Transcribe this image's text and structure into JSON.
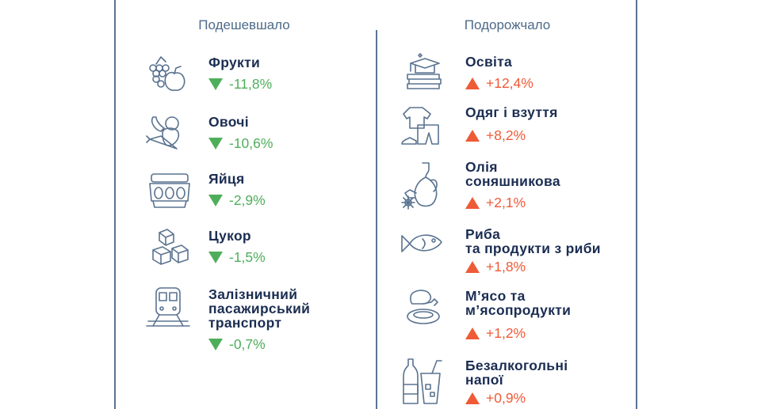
{
  "colors": {
    "navy": "#1b2d52",
    "green": "#4fae5a",
    "red": "#ef5a37",
    "header": "#4d6a89"
  },
  "cheaper": {
    "heading": "Подешевшало",
    "items": [
      {
        "lines": [
          "Фрукти"
        ],
        "value": "-11,8%",
        "icon": "fruit-icon"
      },
      {
        "lines": [
          "Овочі"
        ],
        "value": "-10,6%",
        "icon": "vegetables-icon"
      },
      {
        "lines": [
          "Яйця"
        ],
        "value": "-2,9%",
        "icon": "eggs-icon"
      },
      {
        "lines": [
          "Цукор"
        ],
        "value": "-1,5%",
        "icon": "sugar-icon"
      },
      {
        "lines": [
          "Залізничний",
          "пасажирський",
          "транспорт"
        ],
        "value": "-0,7%",
        "icon": "train-icon"
      }
    ]
  },
  "pricier": {
    "heading": "Подорожчало",
    "items": [
      {
        "lines": [
          "Освіта"
        ],
        "value": "+12,4%",
        "icon": "education-icon"
      },
      {
        "lines": [
          "Одяг і взуття"
        ],
        "value": "+8,2%",
        "icon": "clothes-icon"
      },
      {
        "lines": [
          "Олія",
          "соняшникова"
        ],
        "value": "+2,1%",
        "icon": "oil-icon"
      },
      {
        "lines": [
          "Риба",
          "та продукти з риби"
        ],
        "value": "+1,8%",
        "icon": "fish-icon"
      },
      {
        "lines": [
          "М’ясо та",
          "м’ясопродукти"
        ],
        "value": "+1,2%",
        "icon": "meat-icon"
      },
      {
        "lines": [
          "Безалкогольні",
          "напої"
        ],
        "value": "+0,9%",
        "icon": "drinks-icon"
      }
    ]
  }
}
